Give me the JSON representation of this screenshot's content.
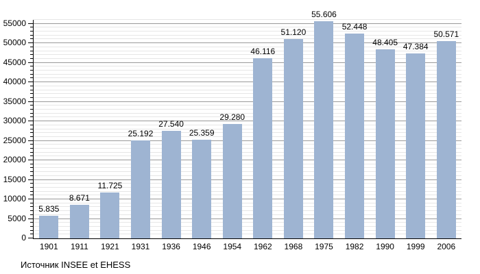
{
  "chart_data": {
    "type": "bar",
    "title": "",
    "xlabel": "",
    "ylabel": "",
    "categories": [
      "1901",
      "1911",
      "1921",
      "1931",
      "1936",
      "1946",
      "1954",
      "1962",
      "1968",
      "1975",
      "1982",
      "1990",
      "1999",
      "2006"
    ],
    "values": [
      5835,
      8671,
      11725,
      25192,
      27540,
      25359,
      29280,
      46116,
      51120,
      55606,
      52448,
      48405,
      47384,
      50571
    ],
    "value_labels": [
      "5.835",
      "8.671",
      "11.725",
      "25.192",
      "27.540",
      "25.359",
      "29.280",
      "46.116",
      "51.120",
      "55.606",
      "52.448",
      "48.405",
      "47.384",
      "50.571"
    ],
    "ylim": [
      0,
      56000
    ],
    "y_major_step": 5000,
    "y_minor_step": 1000,
    "y_tick_labels": [
      "0",
      "5000",
      "10000",
      "15000",
      "20000",
      "25000",
      "30000",
      "35000",
      "40000",
      "45000",
      "50000",
      "55000"
    ],
    "grid": true,
    "legend": "none",
    "bar_color": "#9eb4d2",
    "major_grid_color": "#999999",
    "minor_grid_color": "#e6e6e6",
    "axis_color": "#000000"
  },
  "caption": "Источник INSEE et EHESS"
}
